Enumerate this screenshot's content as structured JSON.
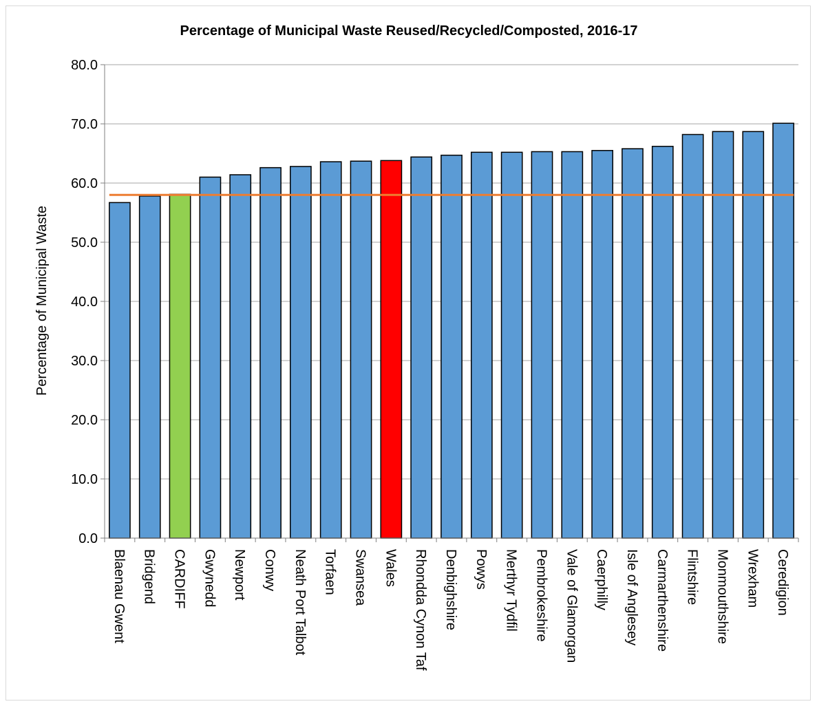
{
  "chart_data": {
    "type": "bar",
    "title": "Percentage of Municipal Waste Reused/Recycled/Composted, 2016-17",
    "xlabel": "",
    "ylabel": "Percentage of Municipal Waste",
    "ylim": [
      0,
      80
    ],
    "yticks": [
      "0.0",
      "10.0",
      "20.0",
      "30.0",
      "40.0",
      "50.0",
      "60.0",
      "70.0",
      "80.0"
    ],
    "grid": true,
    "categories": [
      "Blaenau Gwent",
      "Bridgend",
      "CARDIFF",
      "Gwynedd",
      "Newport",
      "Conwy",
      "Neath Port Talbot",
      "Torfaen",
      "Swansea",
      "Wales",
      "Rhondda Cynon Taf",
      "Denbighshire",
      "Powys",
      "Merthyr Tydfil",
      "Pembrokeshire",
      "Vale of Glamorgan",
      "Caerphilly",
      "Isle of Anglesey",
      "Carmarthenshire",
      "Flintshire",
      "Monmouthshire",
      "Wrexham",
      "Ceredigion"
    ],
    "values": [
      56.7,
      57.8,
      58.1,
      61.0,
      61.4,
      62.6,
      62.8,
      63.6,
      63.7,
      63.8,
      64.4,
      64.7,
      65.2,
      65.2,
      65.3,
      65.3,
      65.5,
      65.8,
      66.2,
      68.2,
      68.7,
      68.7,
      70.1
    ],
    "highlights": {
      "CARDIFF": "#92d050",
      "Wales": "#ff0000"
    },
    "bar_color": "#5b9bd5",
    "reference_line": {
      "value": 58.0,
      "color": "#ed7d31"
    }
  }
}
